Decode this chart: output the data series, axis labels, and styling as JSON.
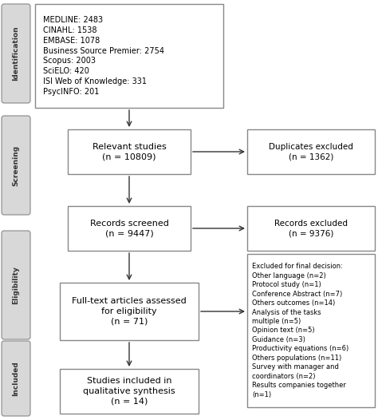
{
  "bg_color": "#ffffff",
  "box_edge_color": "#888888",
  "sidebar_fill": "#d8d8d8",
  "sidebar_edge": "#888888",
  "arrow_color": "#333333",
  "text_color": "#000000",
  "fig_w": 4.74,
  "fig_h": 5.26,
  "dpi": 100,
  "id_text": "MEDLINE: 2483\nCINAHL: 1538\nEMBASE: 1078\nBusiness Source Premier: 2754\nScopus: 2003\nSciELO: 420\nISI Web of Knowledge: 331\nPsycINFO: 201",
  "id_label": "Identification",
  "scr_label": "Screening",
  "eli_label": "Eligibility",
  "inc_label": "Included",
  "box_relevant": "Relevant studies\n(n = 10809)",
  "box_duplicates": "Duplicates excluded\n(n = 1362)",
  "box_records": "Records screened\n(n = 9447)",
  "box_rec_excl": "Records excluded\n(n = 9376)",
  "box_fulltext": "Full-text articles assessed\nfor eligibility\n(n = 71)",
  "box_excl_final": "Excluded for final decision:\nOther language (n=2)\nProtocol study (n=1)\nConference Abstract (n=7)\nOthers outcomes (n=14)\nAnalysis of the tasks\nmultiple (n=5)\nOpinion text (n=5)\nGuidance (n=3)\nProductivity equations (n=6)\nOthers populations (n=11)\nSurvey with manager and\ncoordinators (n=2)\nResults companies together\n(n=1)",
  "box_included": "Studies included in\nqualitative synthesis\n(n = 14)"
}
